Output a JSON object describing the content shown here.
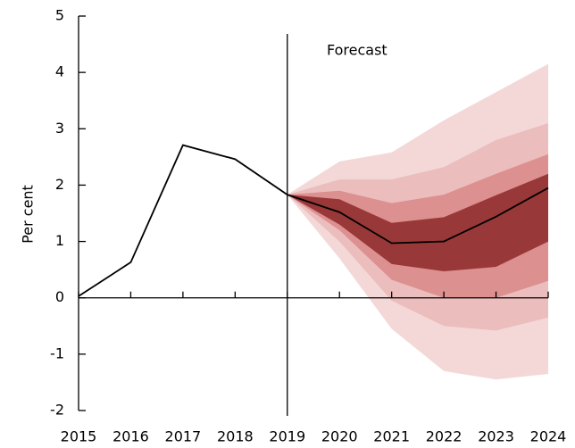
{
  "chart_data": {
    "type": "fan",
    "y_label": "Per cent",
    "annotation": "Forecast",
    "forecast_start": 2019,
    "x": [
      2015,
      2016,
      2017,
      2018,
      2019,
      2020,
      2021,
      2022,
      2023,
      2024
    ],
    "xlim": [
      2015,
      2024
    ],
    "xticks": [
      2015,
      2016,
      2017,
      2018,
      2019,
      2020,
      2021,
      2022,
      2023,
      2024
    ],
    "ylim": [
      -2,
      5
    ],
    "yticks": [
      -2,
      -1,
      0,
      1,
      2,
      3,
      4,
      5
    ],
    "line": {
      "color": "#000000",
      "values": [
        0.03,
        0.63,
        2.71,
        2.46,
        1.83,
        1.52,
        0.97,
        1.0,
        1.44,
        1.95
      ]
    },
    "bands": [
      {
        "color": "#f4d8d8",
        "upper": [
          null,
          null,
          null,
          null,
          1.83,
          2.42,
          2.58,
          3.15,
          3.65,
          4.15
        ],
        "lower": [
          null,
          null,
          null,
          null,
          1.83,
          0.7,
          -0.55,
          -1.3,
          -1.45,
          -1.35
        ]
      },
      {
        "color": "#ebbdbd",
        "upper": [
          null,
          null,
          null,
          null,
          1.83,
          2.1,
          2.1,
          2.32,
          2.8,
          3.1
        ],
        "lower": [
          null,
          null,
          null,
          null,
          1.83,
          1.0,
          -0.05,
          -0.5,
          -0.58,
          -0.35
        ]
      },
      {
        "color": "#dc9090",
        "upper": [
          null,
          null,
          null,
          null,
          1.83,
          1.9,
          1.68,
          1.83,
          2.2,
          2.55
        ],
        "lower": [
          null,
          null,
          null,
          null,
          1.83,
          1.2,
          0.32,
          0.0,
          0.0,
          0.3
        ]
      },
      {
        "color": "#993838",
        "upper": [
          null,
          null,
          null,
          null,
          1.83,
          1.75,
          1.33,
          1.43,
          1.82,
          2.2
        ],
        "lower": [
          null,
          null,
          null,
          null,
          1.83,
          1.3,
          0.6,
          0.47,
          0.55,
          1.0
        ]
      }
    ]
  }
}
